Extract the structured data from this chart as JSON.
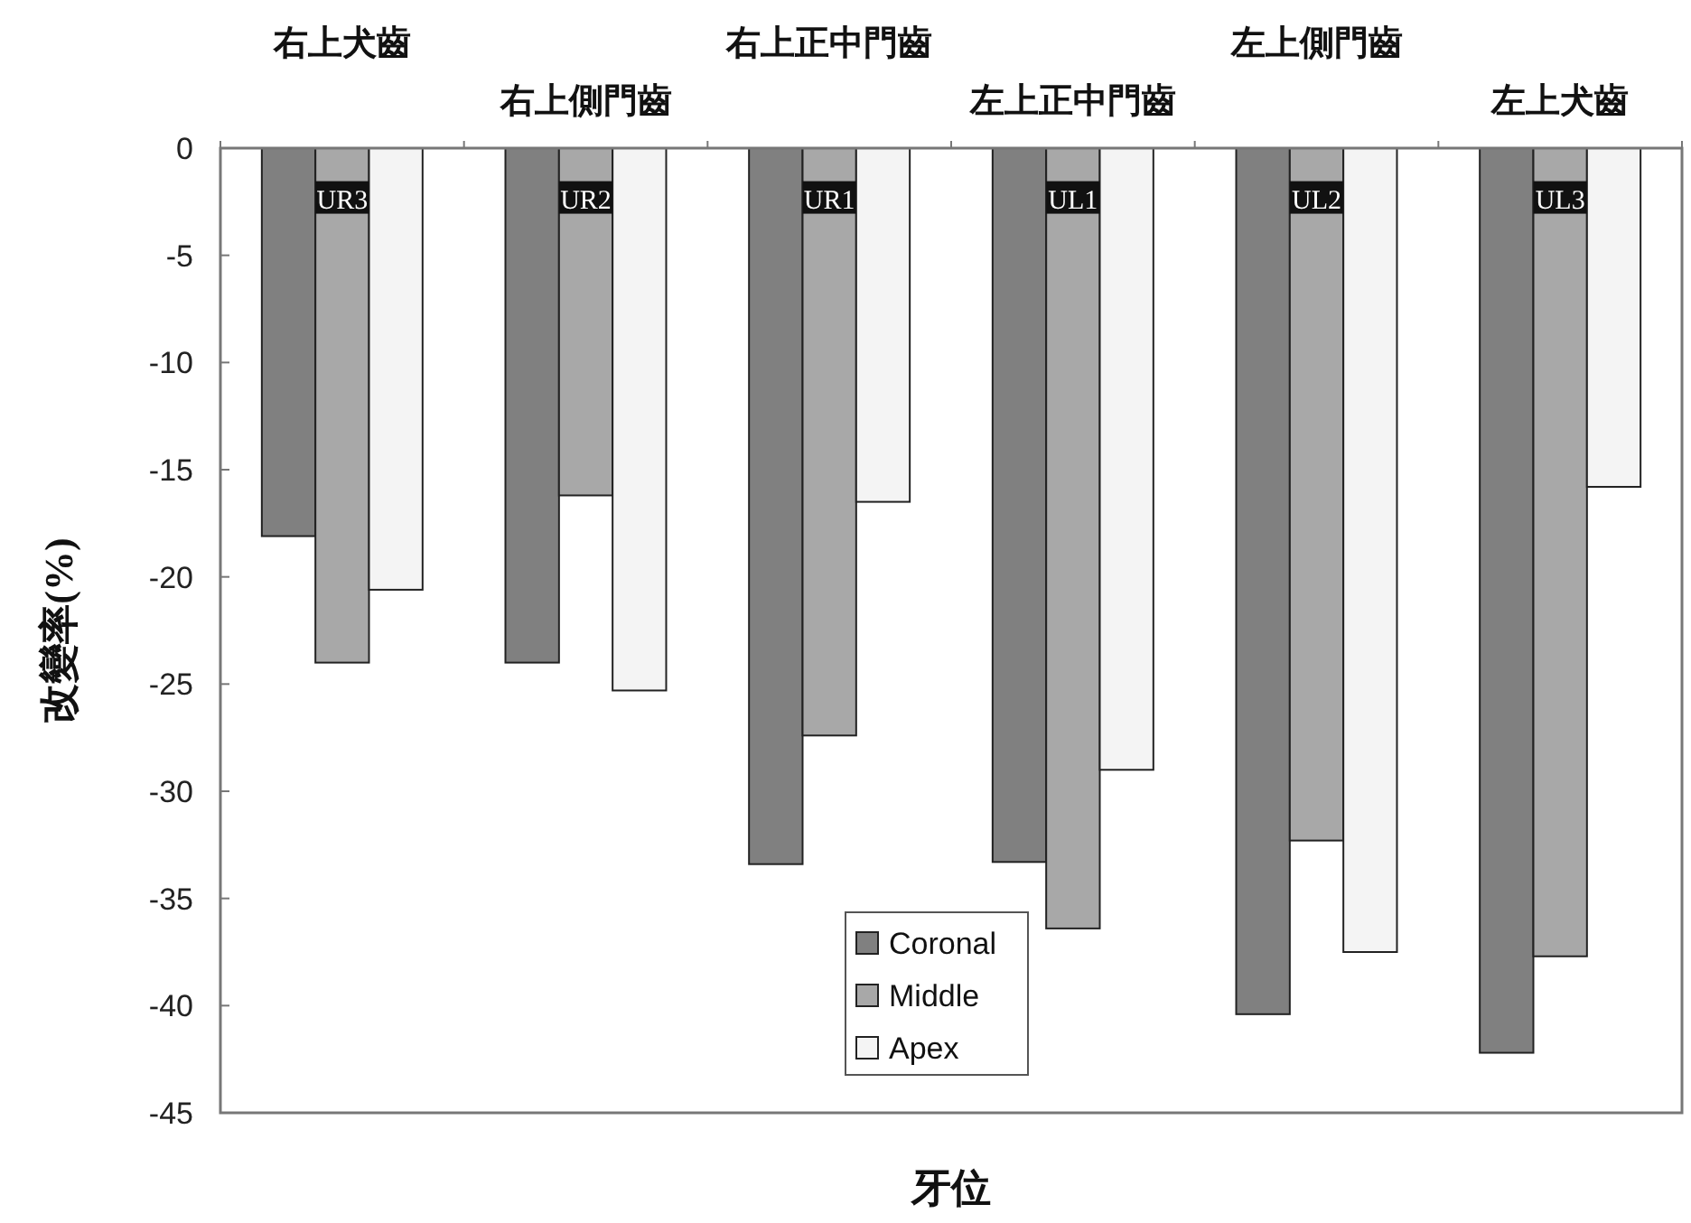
{
  "chart_data": {
    "type": "bar",
    "xlabel": "牙位",
    "ylabel": "改變率(%)",
    "categories": [
      "右上犬齒",
      "右上側門齒",
      "右上正中門齒",
      "左上正中門齒",
      "左上側門齒",
      "左上犬齒"
    ],
    "series": [
      {
        "name": "Coronal",
        "color": "#808080",
        "values": [
          -18.1,
          -24.0,
          -33.4,
          -33.3,
          -40.4,
          -42.2
        ]
      },
      {
        "name": "Middle",
        "color": "#a8a8a8",
        "values": [
          -24.0,
          -16.2,
          -27.4,
          -36.4,
          -32.3,
          -37.7
        ]
      },
      {
        "name": "Apex",
        "color": "#f4f4f4",
        "values": [
          -20.6,
          -25.3,
          -16.5,
          -29.0,
          -37.5,
          -15.8
        ]
      }
    ],
    "annotations": [
      {
        "text": "UR3",
        "x": "右上犬齒",
        "y": -2.3
      },
      {
        "text": "UR2",
        "x": "右上側門齒",
        "y": -2.3
      },
      {
        "text": "UR1",
        "x": "右上正中門齒",
        "y": -2.3
      },
      {
        "text": "UL1",
        "x": "左上正中門齒",
        "y": -2.3
      },
      {
        "text": "UL2",
        "x": "左上側門齒",
        "y": -2.3
      },
      {
        "text": "UL3",
        "x": "左上犬齒",
        "y": -2.3
      }
    ],
    "ylim": [
      -45,
      0
    ],
    "yticks": [
      0,
      -5,
      -10,
      -15,
      -20,
      -25,
      -30,
      -35,
      -40,
      -45
    ],
    "grid": false,
    "legend": "bottom"
  }
}
